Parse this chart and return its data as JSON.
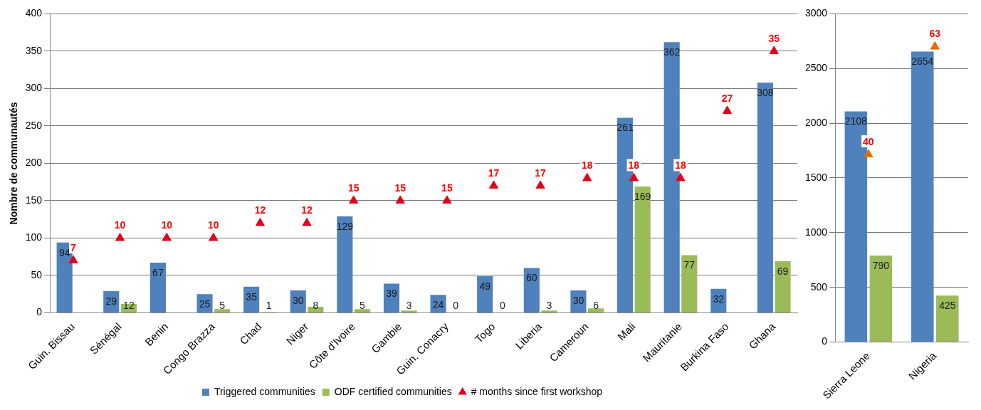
{
  "chart_data": [
    {
      "type": "bar",
      "ylabel": "Nombre de communautés",
      "categories": [
        "Guin. Bissau",
        "Sénégal",
        "Benin",
        "Congo Brazza",
        "Chad",
        "Niger",
        "Côte d'Ivoire",
        "Gambie",
        "Guin. Conacry",
        "Togo",
        "Liberia",
        "Cameroun",
        "Mali",
        "Mauritanie",
        "Burkina Faso",
        "Ghana"
      ],
      "series": [
        {
          "name": "Triggered communities",
          "color": "#4f81bd",
          "values": [
            94,
            29,
            67,
            25,
            35,
            30,
            129,
            39,
            24,
            49,
            60,
            30,
            261,
            362,
            32,
            308
          ]
        },
        {
          "name": "ODF certified communities",
          "color": "#9bbb59",
          "values": [
            null,
            12,
            null,
            5,
            1,
            8,
            5,
            3,
            0,
            0,
            3,
            6,
            169,
            77,
            null,
            69
          ]
        },
        {
          "name": "# months since first workshop",
          "type": "scatter",
          "axis": "y2",
          "marker": "triangle",
          "color": "#e3001b",
          "values": [
            7,
            10,
            10,
            10,
            12,
            12,
            15,
            15,
            15,
            17,
            17,
            18,
            18,
            18,
            27,
            35
          ]
        }
      ],
      "ylim": [
        0,
        400
      ],
      "yticks": [
        0,
        50,
        100,
        150,
        200,
        250,
        300,
        350,
        400
      ],
      "y2lim": [
        0,
        40
      ],
      "grid": "y",
      "legend": "bottom",
      "data_labels": true
    },
    {
      "type": "bar",
      "categories": [
        "Sierra Leone",
        "Nigeria"
      ],
      "series": [
        {
          "color": "#4f81bd",
          "values": [
            2108,
            2654
          ]
        },
        {
          "color": "#9bbb59",
          "values": [
            790,
            425
          ]
        },
        {
          "type": "scatter",
          "axis": "y2",
          "marker": "triangle",
          "color": "#e46c0a",
          "values": [
            40,
            63
          ]
        }
      ],
      "ylim": [
        0,
        3000
      ],
      "yticks": [
        0,
        500,
        1000,
        1500,
        2000,
        2500,
        3000
      ],
      "y2lim": [
        0,
        70
      ],
      "grid": "y",
      "legend": false,
      "data_labels": true
    }
  ]
}
